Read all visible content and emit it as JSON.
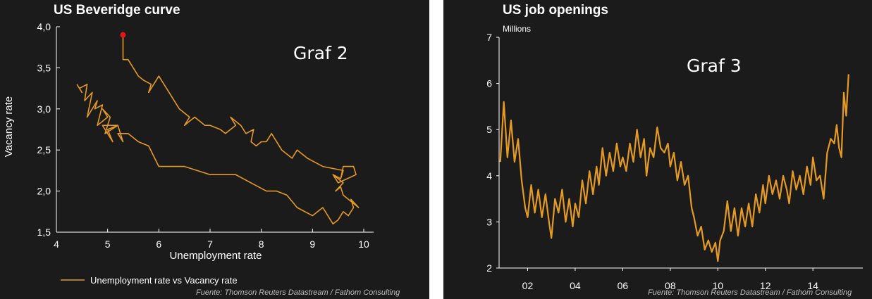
{
  "colors": {
    "background": "#1b1b1b",
    "line": "#e59a22",
    "marker": "#e8141a",
    "text": "#ffffff"
  },
  "chart_data": [
    {
      "type": "line",
      "title": "US Beveridge curve",
      "annotation": "Graf 2",
      "xlabel": "Unemployment rate",
      "ylabel": "Vacancy rate",
      "xlim": [
        4,
        10
      ],
      "ylim": [
        1.5,
        4.0
      ],
      "x_ticks": [
        "4",
        "5",
        "6",
        "7",
        "8",
        "9",
        "10"
      ],
      "y_ticks": [
        "1,5",
        "2,0",
        "2,5",
        "3,0",
        "3,5",
        "4,0"
      ],
      "grid": false,
      "legend_position": "bottom-left",
      "source": "Fuente: Thomson Reuters Datastream / Fathom Consulting",
      "series": [
        {
          "name": "Unemployment rate vs Vacancy rate",
          "x": [
            4.4,
            4.5,
            4.45,
            4.6,
            4.55,
            4.7,
            4.6,
            4.8,
            4.75,
            4.9,
            4.8,
            5.0,
            4.9,
            5.05,
            4.95,
            5.2,
            5.0,
            5.1,
            4.9,
            5.2,
            5.3,
            5.2,
            5.4,
            5.6,
            5.8,
            6.0,
            6.1,
            6.5,
            7.0,
            7.5,
            7.8,
            8.1,
            8.3,
            8.5,
            8.7,
            9.0,
            9.2,
            9.4,
            9.5,
            9.6,
            9.7,
            9.8,
            9.75,
            9.9,
            9.6,
            9.55,
            9.45,
            9.6,
            9.4,
            9.55,
            9.6,
            9.8,
            9.85,
            9.5,
            9.4,
            9.55,
            9.6,
            9.2,
            8.9,
            8.7,
            8.6,
            8.4,
            8.2,
            8.1,
            8.0,
            7.9,
            7.8,
            7.85,
            7.7,
            7.6,
            7.4,
            7.5,
            7.3,
            7.2,
            7.0,
            6.9,
            6.7,
            6.6,
            6.5,
            6.6,
            6.4,
            6.3,
            6.2,
            6.15,
            6.1,
            6.0,
            5.9,
            5.8,
            5.85,
            5.7,
            5.6,
            5.5,
            5.4,
            5.3,
            5.3
          ],
          "y": [
            3.3,
            3.2,
            3.25,
            3.3,
            3.1,
            3.2,
            2.9,
            3.1,
            3.0,
            3.05,
            2.8,
            2.9,
            3.0,
            2.9,
            2.7,
            2.8,
            2.75,
            2.6,
            2.8,
            2.8,
            2.6,
            2.7,
            2.7,
            2.6,
            2.55,
            2.3,
            2.3,
            2.3,
            2.2,
            2.2,
            2.1,
            2.0,
            2.0,
            1.95,
            1.8,
            1.7,
            1.8,
            1.6,
            1.65,
            1.75,
            1.7,
            1.8,
            1.9,
            1.8,
            1.95,
            2.05,
            2.0,
            2.1,
            2.2,
            2.15,
            2.3,
            2.3,
            2.2,
            2.1,
            2.2,
            2.15,
            2.25,
            2.3,
            2.4,
            2.5,
            2.4,
            2.5,
            2.7,
            2.6,
            2.6,
            2.55,
            2.6,
            2.75,
            2.7,
            2.8,
            2.9,
            2.8,
            2.7,
            2.75,
            2.8,
            2.8,
            2.9,
            2.85,
            2.8,
            2.9,
            3.0,
            3.1,
            3.2,
            3.25,
            3.3,
            3.4,
            3.3,
            3.2,
            3.3,
            3.35,
            3.4,
            3.5,
            3.6,
            3.6,
            3.9
          ]
        }
      ]
    },
    {
      "type": "line",
      "title": "US job openings",
      "units": "Millions",
      "annotation": "Graf 3",
      "xlabel": "",
      "ylabel": "",
      "xlim": [
        2000.8,
        2016.1
      ],
      "ylim": [
        2,
        7
      ],
      "x_ticks": [
        "02",
        "04",
        "06",
        "08",
        "10",
        "12",
        "14"
      ],
      "y_ticks": [
        "2",
        "3",
        "4",
        "5",
        "6",
        "7"
      ],
      "grid": false,
      "source": "Fuente: Thomson Reuters Datastream / Fathom Consulting",
      "series": [
        {
          "x": [
            2000.85,
            2001.0,
            2001.15,
            2001.3,
            2001.45,
            2001.6,
            2001.75,
            2001.9,
            2002.0,
            2002.15,
            2002.3,
            2002.45,
            2002.6,
            2002.75,
            2002.9,
            2003.0,
            2003.15,
            2003.3,
            2003.45,
            2003.6,
            2003.75,
            2003.9,
            2004.0,
            2004.15,
            2004.3,
            2004.45,
            2004.6,
            2004.75,
            2004.9,
            2005.0,
            2005.15,
            2005.3,
            2005.45,
            2005.6,
            2005.75,
            2005.9,
            2006.0,
            2006.15,
            2006.3,
            2006.45,
            2006.6,
            2006.75,
            2006.9,
            2007.0,
            2007.15,
            2007.3,
            2007.45,
            2007.6,
            2007.75,
            2007.9,
            2008.0,
            2008.15,
            2008.3,
            2008.45,
            2008.6,
            2008.75,
            2008.9,
            2009.0,
            2009.15,
            2009.3,
            2009.45,
            2009.6,
            2009.75,
            2009.9,
            2010.0,
            2010.1,
            2010.25,
            2010.4,
            2010.55,
            2010.7,
            2010.85,
            2011.0,
            2011.15,
            2011.3,
            2011.45,
            2011.6,
            2011.75,
            2011.9,
            2012.0,
            2012.15,
            2012.3,
            2012.45,
            2012.6,
            2012.75,
            2012.9,
            2013.0,
            2013.15,
            2013.3,
            2013.45,
            2013.6,
            2013.75,
            2013.9,
            2014.0,
            2014.15,
            2014.3,
            2014.45,
            2014.6,
            2014.75,
            2014.9,
            2015.0,
            2015.1,
            2015.2,
            2015.3,
            2015.4,
            2015.5
          ],
          "y": [
            4.3,
            5.6,
            4.4,
            5.2,
            4.3,
            4.8,
            3.9,
            3.3,
            3.1,
            3.8,
            3.2,
            3.7,
            3.1,
            3.6,
            3.0,
            2.65,
            3.5,
            3.2,
            3.7,
            3.0,
            3.5,
            2.9,
            3.4,
            3.1,
            3.9,
            3.4,
            4.1,
            3.6,
            4.2,
            3.8,
            4.6,
            4.0,
            4.5,
            4.1,
            4.7,
            4.2,
            4.4,
            4.1,
            4.7,
            4.3,
            5.0,
            4.4,
            4.8,
            4.0,
            4.6,
            4.4,
            5.05,
            4.6,
            4.5,
            4.7,
            4.2,
            4.5,
            3.9,
            4.3,
            3.8,
            4.0,
            3.3,
            3.1,
            2.7,
            2.9,
            2.4,
            2.6,
            2.35,
            2.55,
            2.15,
            2.6,
            2.8,
            3.45,
            2.8,
            3.3,
            2.7,
            3.3,
            2.9,
            3.4,
            2.9,
            3.6,
            3.2,
            3.8,
            3.4,
            4.0,
            3.6,
            3.9,
            3.5,
            4.0,
            3.7,
            3.4,
            4.1,
            3.7,
            4.0,
            3.6,
            4.2,
            3.8,
            4.4,
            3.9,
            4.0,
            3.5,
            4.5,
            4.8,
            4.7,
            5.1,
            4.6,
            4.4,
            5.8,
            5.3,
            6.2
          ]
        }
      ]
    }
  ]
}
